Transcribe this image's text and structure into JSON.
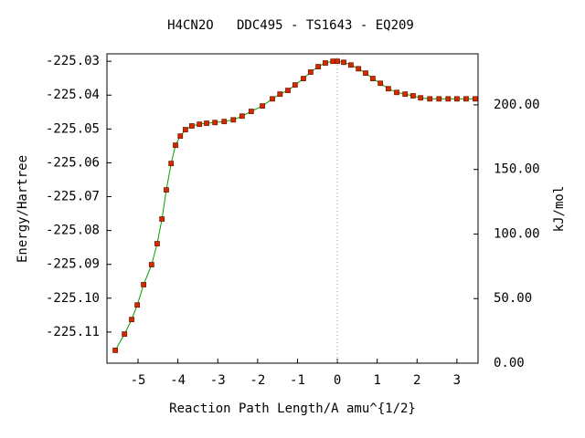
{
  "chart_data": {
    "type": "line",
    "title": "H4CN2O   DDC495 - TS1643 - EQ209",
    "x_label": "Reaction Path Length/A amu^{1/2}",
    "y_label": "Energy/Hartree",
    "y2_label": "kJ/mol",
    "line_color": "#00a000",
    "marker_color": "#d42a00",
    "x": [
      -5.57,
      -5.34,
      -5.16,
      -5.02,
      -4.86,
      -4.66,
      -4.52,
      -4.4,
      -4.29,
      -4.17,
      -4.06,
      -3.94,
      -3.81,
      -3.65,
      -3.46,
      -3.28,
      -3.07,
      -2.84,
      -2.61,
      -2.39,
      -2.16,
      -1.88,
      -1.63,
      -1.44,
      -1.24,
      -1.06,
      -0.85,
      -0.67,
      -0.48,
      -0.3,
      -0.11,
      0,
      0.16,
      0.34,
      0.53,
      0.71,
      0.89,
      1.08,
      1.28,
      1.49,
      1.7,
      1.9,
      2.09,
      2.32,
      2.55,
      2.78,
      3.0,
      3.23,
      3.46
    ],
    "values": [
      -225.1154,
      -225.1106,
      -225.1063,
      -225.102,
      -225.096,
      -225.0901,
      -225.0839,
      -225.0766,
      -225.068,
      -225.0602,
      -225.0548,
      -225.0521,
      -225.0502,
      -225.0491,
      -225.0486,
      -225.0483,
      -225.0481,
      -225.0478,
      -225.0473,
      -225.0462,
      -225.0448,
      -225.0432,
      -225.0411,
      -225.0397,
      -225.0386,
      -225.037,
      -225.0351,
      -225.0332,
      -225.0316,
      -225.0305,
      -225.03,
      -225.03,
      -225.0303,
      -225.0311,
      -225.0322,
      -225.0335,
      -225.0351,
      -225.0365,
      -225.0381,
      -225.0392,
      -225.0397,
      -225.0402,
      -225.0408,
      -225.0411,
      -225.0411,
      -225.0411,
      -225.0411,
      -225.0411,
      -225.0411
    ],
    "xlim": [
      -5.78,
      3.53
    ],
    "xticks": [
      -5,
      -4,
      -3,
      -2,
      -1,
      0,
      1,
      2,
      3
    ],
    "ylim": [
      -225.1192,
      -225.0278
    ],
    "yticks": [
      -225.11,
      {
        "value": -225.1,
        "label": "-225.10"
      },
      -225.09,
      -225.08,
      -225.07,
      -225.06,
      -225.05,
      -225.04,
      -225.03
    ],
    "y2lim": [
      0,
      239.5
    ],
    "y2ticks": [
      {
        "value": 0,
        "label": "0.00"
      },
      {
        "value": 50,
        "label": "50.00"
      },
      {
        "value": 100,
        "label": "100.00"
      },
      {
        "value": 150,
        "label": "150.00"
      },
      {
        "value": 200,
        "label": "200.00"
      }
    ]
  }
}
